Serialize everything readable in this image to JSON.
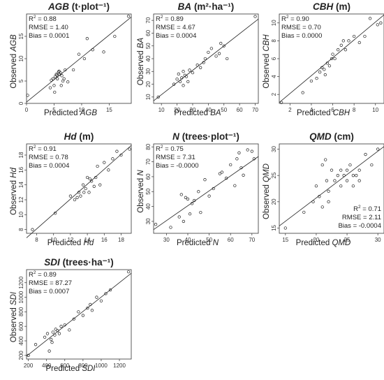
{
  "figure": {
    "chart_data": [
      {
        "type": "scatter",
        "title": "AGB (t·plot⁻¹)",
        "title_var": "AGB",
        "title_unit": "(t·plot⁻¹)",
        "xlabel": "Predicted",
        "ylabel": "Observed",
        "var": "AGB",
        "xlim": [
          0,
          19
        ],
        "ylim": [
          0,
          20
        ],
        "xticks": [
          0,
          5,
          10,
          15
        ],
        "yticks": [
          0,
          5,
          10,
          15
        ],
        "stats": {
          "r2": "0.88",
          "rmse": "1.40",
          "bias": "0.0001"
        },
        "stats_position": "top-left",
        "x": [
          0.2,
          4.3,
          4.8,
          5.0,
          5.2,
          5.4,
          5.5,
          5.6,
          5.8,
          6.0,
          6.2,
          6.4,
          6.6,
          6.8,
          7.0,
          7.5,
          8.5,
          9.5,
          10.5,
          11.0,
          12.0,
          14.0,
          16.0,
          18.5,
          5.1,
          6.3,
          5.9,
          4.5
        ],
        "y": [
          1.8,
          3.5,
          5.5,
          4.0,
          6.0,
          6.5,
          6.3,
          5.5,
          7.0,
          6.5,
          6.8,
          6.2,
          5.0,
          5.5,
          7.5,
          4.8,
          7.5,
          11.0,
          10.0,
          14.5,
          12.0,
          11.5,
          15.0,
          19.5,
          2.5,
          4.0,
          7.2,
          5.2
        ],
        "fit": [
          [
            0,
            0.3
          ],
          [
            19,
            19.3
          ]
        ]
      },
      {
        "type": "scatter",
        "title": "BA (m²·ha⁻¹)",
        "title_var": "BA",
        "title_unit": "(m²·ha⁻¹)",
        "xlabel": "Predicted",
        "ylabel": "Observed",
        "var": "BA",
        "xlim": [
          5,
          72
        ],
        "ylim": [
          5,
          75
        ],
        "xticks": [
          10,
          20,
          30,
          40,
          50,
          60,
          70
        ],
        "yticks": [
          10,
          20,
          30,
          40,
          50,
          60,
          70
        ],
        "stats": {
          "r2": "0.89",
          "rmse": "4.67",
          "bias": "0.0004"
        },
        "stats_position": "top-left",
        "x": [
          8,
          18,
          20,
          21,
          22,
          23,
          24,
          24,
          25,
          26,
          27,
          28,
          30,
          33,
          35,
          37,
          40,
          42,
          45,
          47,
          48,
          50,
          70,
          52,
          38
        ],
        "y": [
          10,
          20,
          24,
          28,
          22,
          25,
          30,
          19,
          27,
          26,
          22,
          31,
          29,
          35,
          33,
          37,
          45,
          48,
          42,
          44,
          52,
          50,
          73,
          40,
          40
        ],
        "fit": [
          [
            5,
            7
          ],
          [
            72,
            71
          ]
        ]
      },
      {
        "type": "scatter",
        "title": "CBH (m)",
        "title_var": "CBH",
        "title_unit": "(m)",
        "xlabel": "Predicted",
        "ylabel": "Observed",
        "var": "CBH",
        "xlim": [
          1,
          10.8
        ],
        "ylim": [
          1,
          11
        ],
        "xticks": [
          2,
          4,
          6,
          8,
          10
        ],
        "yticks": [
          2,
          4,
          6,
          8,
          10
        ],
        "stats": {
          "r2": "0.90",
          "rmse": "0.70",
          "bias": "0.0000"
        },
        "stats_position": "top-left",
        "x": [
          1.2,
          3.2,
          4.0,
          4.5,
          4.8,
          5.0,
          5.2,
          5.5,
          5.7,
          5.9,
          6.0,
          6.2,
          6.5,
          6.8,
          7.0,
          7.2,
          7.5,
          8.0,
          8.5,
          9.0,
          9.5,
          10.2,
          10.5,
          5.3
        ],
        "y": [
          1.1,
          2.2,
          3.5,
          3.8,
          4.5,
          5.0,
          4.8,
          5.5,
          5.2,
          6.0,
          6.5,
          6.0,
          7.0,
          7.5,
          8.0,
          7.0,
          8.0,
          8.5,
          7.8,
          8.5,
          10.5,
          9.8,
          10.0,
          4.2
        ],
        "fit": [
          [
            1,
            1.1
          ],
          [
            10.8,
            10.9
          ]
        ]
      },
      {
        "type": "scatter",
        "title": "Hd (m)",
        "title_var": "Hd",
        "title_unit": "(m)",
        "xlabel": "Predicted",
        "ylabel": "Observed",
        "var": "Hd",
        "xlim": [
          6.8,
          19.2
        ],
        "ylim": [
          7.5,
          19.5
        ],
        "xticks": [
          8,
          10,
          12,
          14,
          16,
          18
        ],
        "yticks": [
          8,
          10,
          12,
          14,
          16,
          18
        ],
        "stats": {
          "r2": "0.91",
          "rmse": "0.78",
          "bias": "0.0004"
        },
        "stats_position": "top-left",
        "x": [
          7.5,
          10.2,
          12.0,
          12.5,
          13.0,
          13.2,
          13.5,
          13.8,
          14.0,
          14.2,
          14.5,
          14.8,
          15.0,
          15.2,
          15.5,
          16.0,
          16.5,
          17.0,
          17.5,
          18.0,
          19.0,
          12.8,
          14.3,
          13.6
        ],
        "y": [
          8.0,
          10.2,
          12.5,
          12.0,
          13.0,
          12.5,
          14.0,
          13.5,
          15.0,
          13.0,
          14.5,
          13.8,
          15.0,
          16.5,
          14.0,
          17.0,
          16.0,
          17.5,
          18.5,
          18.0,
          18.8,
          12.3,
          14.8,
          13.0
        ],
        "fit": [
          [
            6.8,
            6.9
          ],
          [
            19.2,
            19.3
          ]
        ]
      },
      {
        "type": "scatter",
        "title": "N (trees·plot⁻¹)",
        "title_var": "N",
        "title_unit": "(trees·plot⁻¹)",
        "xlabel": "Predicted",
        "ylabel": "Observed",
        "var": "N",
        "xlim": [
          24,
          73
        ],
        "ylim": [
          22,
          82
        ],
        "xticks": [
          30,
          40,
          50,
          60,
          70
        ],
        "yticks": [
          30,
          40,
          50,
          60,
          70,
          80
        ],
        "stats": {
          "r2": "0.75",
          "rmse": "7.31",
          "bias": "-0.0000"
        },
        "stats_position": "top-left",
        "x": [
          25,
          32,
          36,
          37,
          38,
          40,
          41,
          42,
          43,
          45,
          46,
          48,
          50,
          52,
          55,
          56,
          58,
          60,
          62,
          63,
          64,
          65,
          66,
          68,
          70,
          71,
          39
        ],
        "y": [
          28,
          26,
          33,
          48,
          30,
          45,
          35,
          42,
          44,
          50,
          36,
          58,
          47,
          52,
          62,
          63,
          59,
          68,
          54,
          72,
          76,
          66,
          61,
          78,
          77,
          72,
          46
        ],
        "fit": [
          [
            24,
            24.5
          ],
          [
            73,
            73.5
          ]
        ]
      },
      {
        "type": "scatter",
        "title": "QMD (cm)",
        "title_var": "QMD",
        "title_unit": "(cm)",
        "xlabel": "Predicted",
        "ylabel": "Observed",
        "var": "QMD",
        "xlim": [
          14,
          31
        ],
        "ylim": [
          14,
          31
        ],
        "xticks": [
          15,
          20,
          25,
          30
        ],
        "yticks": [
          15,
          20,
          25,
          30
        ],
        "stats": {
          "r2": "0.71",
          "rmse": "2.11",
          "bias": "-0.0004"
        },
        "stats_position": "bottom-right",
        "x": [
          15,
          18,
          19.5,
          20,
          20.5,
          21,
          21,
          21.5,
          22,
          22,
          22.5,
          23,
          23.5,
          24,
          24,
          24.5,
          25,
          25,
          25.5,
          26,
          26,
          26.5,
          27,
          27,
          28,
          29,
          30,
          21.7
        ],
        "y": [
          15,
          18,
          20,
          23,
          21,
          19,
          27,
          28,
          22,
          20,
          26,
          24,
          25,
          26,
          23,
          25,
          24,
          26,
          27,
          25,
          23,
          25,
          24,
          26,
          29,
          27,
          30,
          24
        ],
        "fit": [
          [
            14,
            15.4
          ],
          [
            31,
            30.5
          ]
        ]
      },
      {
        "type": "scatter",
        "title": "SDI (trees·ha⁻¹)",
        "title_var": "SDI",
        "title_unit": "(trees·ha⁻¹)",
        "xlabel": "Predicted",
        "ylabel": "Observed",
        "var": "SDI",
        "xlim": [
          180,
          1330
        ],
        "ylim": [
          150,
          1380
        ],
        "xticks": [
          200,
          400,
          600,
          800,
          1000,
          1200
        ],
        "yticks": [
          200,
          400,
          600,
          800,
          1000,
          1200
        ],
        "stats": {
          "r2": "0.89",
          "rmse": "87.27",
          "bias": "0.0007"
        },
        "stats_position": "top-left",
        "x": [
          200,
          280,
          380,
          410,
          430,
          450,
          470,
          490,
          500,
          520,
          540,
          560,
          600,
          650,
          700,
          750,
          800,
          850,
          880,
          900,
          950,
          1000,
          1050,
          1100,
          1300,
          460
        ],
        "y": [
          200,
          350,
          450,
          500,
          260,
          420,
          520,
          480,
          560,
          540,
          500,
          600,
          620,
          550,
          700,
          800,
          750,
          850,
          900,
          820,
          1000,
          950,
          1050,
          1100,
          1350,
          380
        ],
        "fit": [
          [
            180,
            190
          ],
          [
            1330,
            1330
          ]
        ]
      }
    ]
  }
}
